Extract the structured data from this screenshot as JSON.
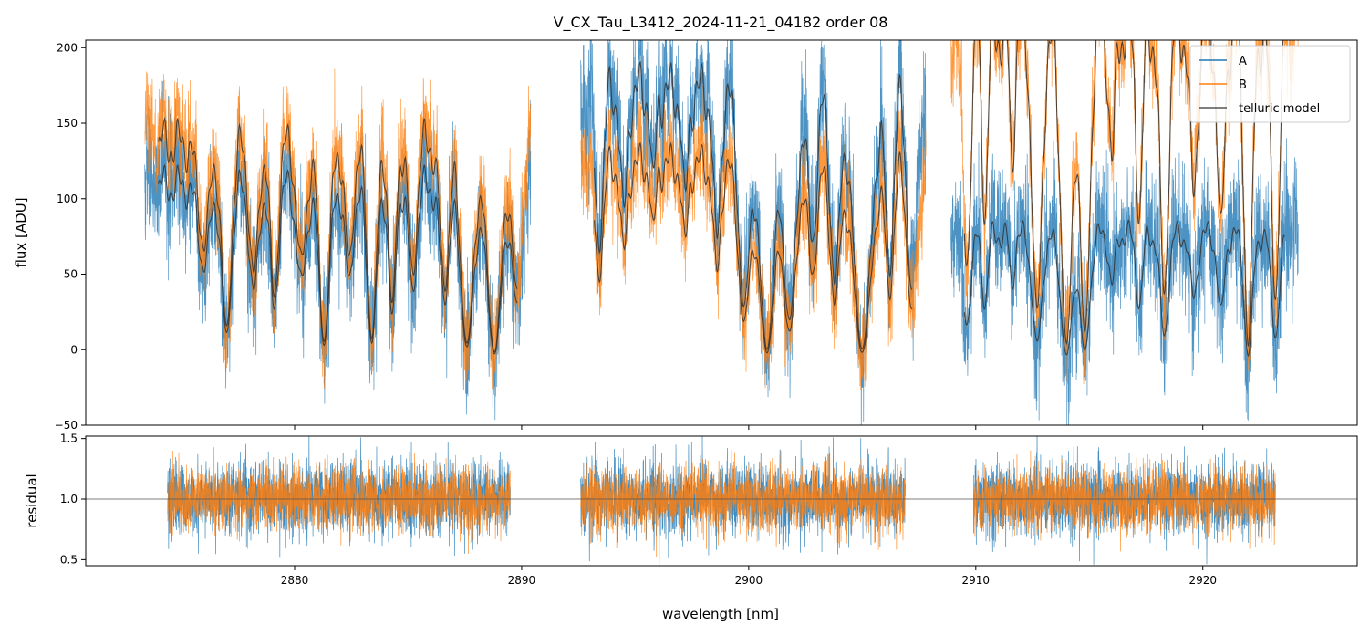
{
  "chart_data": {
    "type": "line",
    "title": "V_CX_Tau_L3412_2024-11-21_04182  order 08",
    "xlabel": "wavelength [nm]",
    "xlim": [
      2870.8,
      2926.8
    ],
    "xticks": [
      2880,
      2890,
      2900,
      2910,
      2920
    ],
    "xtick_labels": [
      "2880",
      "2890",
      "2900",
      "2910",
      "2920"
    ],
    "colors": {
      "A": "#1f77b4",
      "B": "#ff7f0e",
      "telluric": "#333333",
      "ref": "#555555"
    },
    "top_panel": {
      "ylabel": "flux [ADU]",
      "ylim": [
        -50,
        205
      ],
      "yticks": [
        -50,
        0,
        50,
        100,
        150,
        200
      ],
      "ytick_labels": [
        "−50",
        "0",
        "50",
        "100",
        "150",
        "200"
      ],
      "segments": [
        {
          "x_start": 2873.4,
          "x_end": 2890.4,
          "scale_A": 1.0,
          "scale_B": 1.25,
          "telluric_scale_A": 0.97,
          "telluric_scale_B": 1.2
        },
        {
          "x_start": 2892.6,
          "x_end": 2907.8,
          "scale_A": 1.5,
          "scale_B": 1.1,
          "telluric_scale_A": 1.48,
          "telluric_scale_B": 1.08
        },
        {
          "x_start": 2908.9,
          "x_end": 2924.2,
          "scale_A": 0.72,
          "scale_B": 1.85,
          "telluric_scale_A": 0.7,
          "telluric_scale_B": 1.82
        }
      ],
      "series": [
        {
          "name": "A",
          "noise_ADU": 30
        },
        {
          "name": "B",
          "noise_ADU": 22
        },
        {
          "name": "telluric model"
        }
      ]
    },
    "bottom_panel": {
      "ylabel": "residual",
      "ylim": [
        0.45,
        1.52
      ],
      "yticks": [
        0.5,
        1.0,
        1.5
      ],
      "ytick_labels": [
        "0.5",
        "1.0",
        "1.5"
      ],
      "reference_line": 1.0,
      "segments": [
        {
          "x_start": 2874.4,
          "x_end": 2889.5
        },
        {
          "x_start": 2892.6,
          "x_end": 2906.9
        },
        {
          "x_start": 2909.9,
          "x_end": 2923.2
        }
      ],
      "series": [
        {
          "name": "A",
          "center": 1.0,
          "spread": 0.15
        },
        {
          "name": "B",
          "center": 1.0,
          "spread": 0.13
        }
      ]
    },
    "legend": {
      "position": "top-right",
      "entries": [
        "A",
        "B",
        "telluric model"
      ]
    }
  }
}
